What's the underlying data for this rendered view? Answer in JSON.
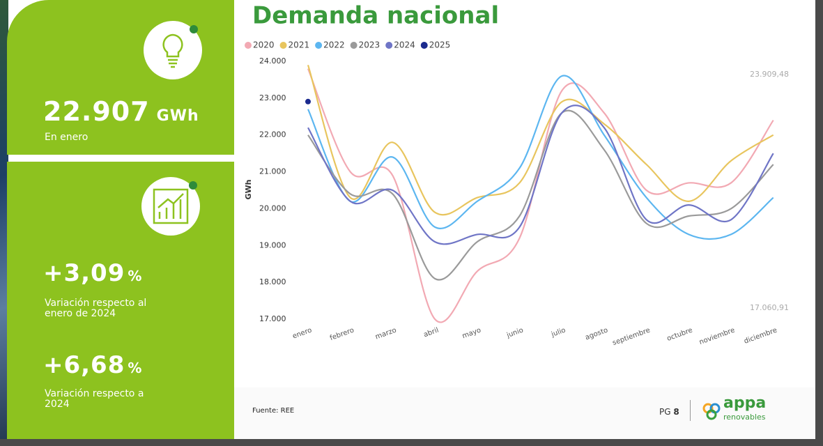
{
  "chart_data": {
    "type": "line",
    "title": "Demanda nacional",
    "ylabel": "GWh",
    "categories": [
      "enero",
      "febrero",
      "marzo",
      "abril",
      "mayo",
      "junio",
      "julio",
      "agosto",
      "septiembre",
      "octubre",
      "noviembre",
      "diciembre"
    ],
    "series": [
      {
        "name": "2020",
        "color": "#f2a9b3",
        "values": [
          23800,
          21000,
          20900,
          17000,
          18300,
          19200,
          23200,
          22600,
          20500,
          20700,
          20700,
          22400
        ]
      },
      {
        "name": "2021",
        "color": "#e8c55e",
        "values": [
          23900,
          20300,
          21800,
          19900,
          20300,
          20700,
          22900,
          22300,
          21200,
          20200,
          21300,
          22000
        ]
      },
      {
        "name": "2022",
        "color": "#5cb6f0",
        "values": [
          22700,
          20200,
          21400,
          19500,
          20200,
          21100,
          23600,
          22000,
          20300,
          19300,
          19300,
          20300
        ]
      },
      {
        "name": "2023",
        "color": "#9a9a9a",
        "values": [
          22000,
          20400,
          20400,
          18100,
          19100,
          19800,
          22600,
          21600,
          19600,
          19800,
          20000,
          21200
        ]
      },
      {
        "name": "2024",
        "color": "#6f75c6",
        "values": [
          22200,
          20200,
          20500,
          19100,
          19300,
          19500,
          22600,
          22200,
          19700,
          20100,
          19700,
          21500
        ]
      },
      {
        "name": "2025",
        "color": "#1b2a8e",
        "values": [
          22907,
          null,
          null,
          null,
          null,
          null,
          null,
          null,
          null,
          null,
          null,
          null
        ]
      }
    ],
    "ylim": [
      17000,
      24000
    ],
    "yticks": [
      {
        "value": 17000,
        "label": "17.000"
      },
      {
        "value": 18000,
        "label": "18.000"
      },
      {
        "value": 19000,
        "label": "19.000"
      },
      {
        "value": 20000,
        "label": "20.000"
      },
      {
        "value": 21000,
        "label": "21.000"
      },
      {
        "value": 22000,
        "label": "22.000"
      },
      {
        "value": 23000,
        "label": "23.000"
      },
      {
        "value": 24000,
        "label": "24.000"
      }
    ],
    "grid": false,
    "annotations": [
      "23.909,48",
      "17.060,91"
    ]
  },
  "kpis": [
    {
      "value": "22.907",
      "unit": "GWh",
      "caption": "En enero"
    },
    {
      "value": "+3,09",
      "unit": "%",
      "caption": "Variación respecto al enero de 2024"
    },
    {
      "value": "+6,68",
      "unit": "%",
      "caption": "Variación respecto a 2024"
    }
  ],
  "footer": {
    "source": "Fuente: REE",
    "page_label": "PG",
    "page_number": "8",
    "logo": "appa",
    "logo_sub": "renovables"
  }
}
